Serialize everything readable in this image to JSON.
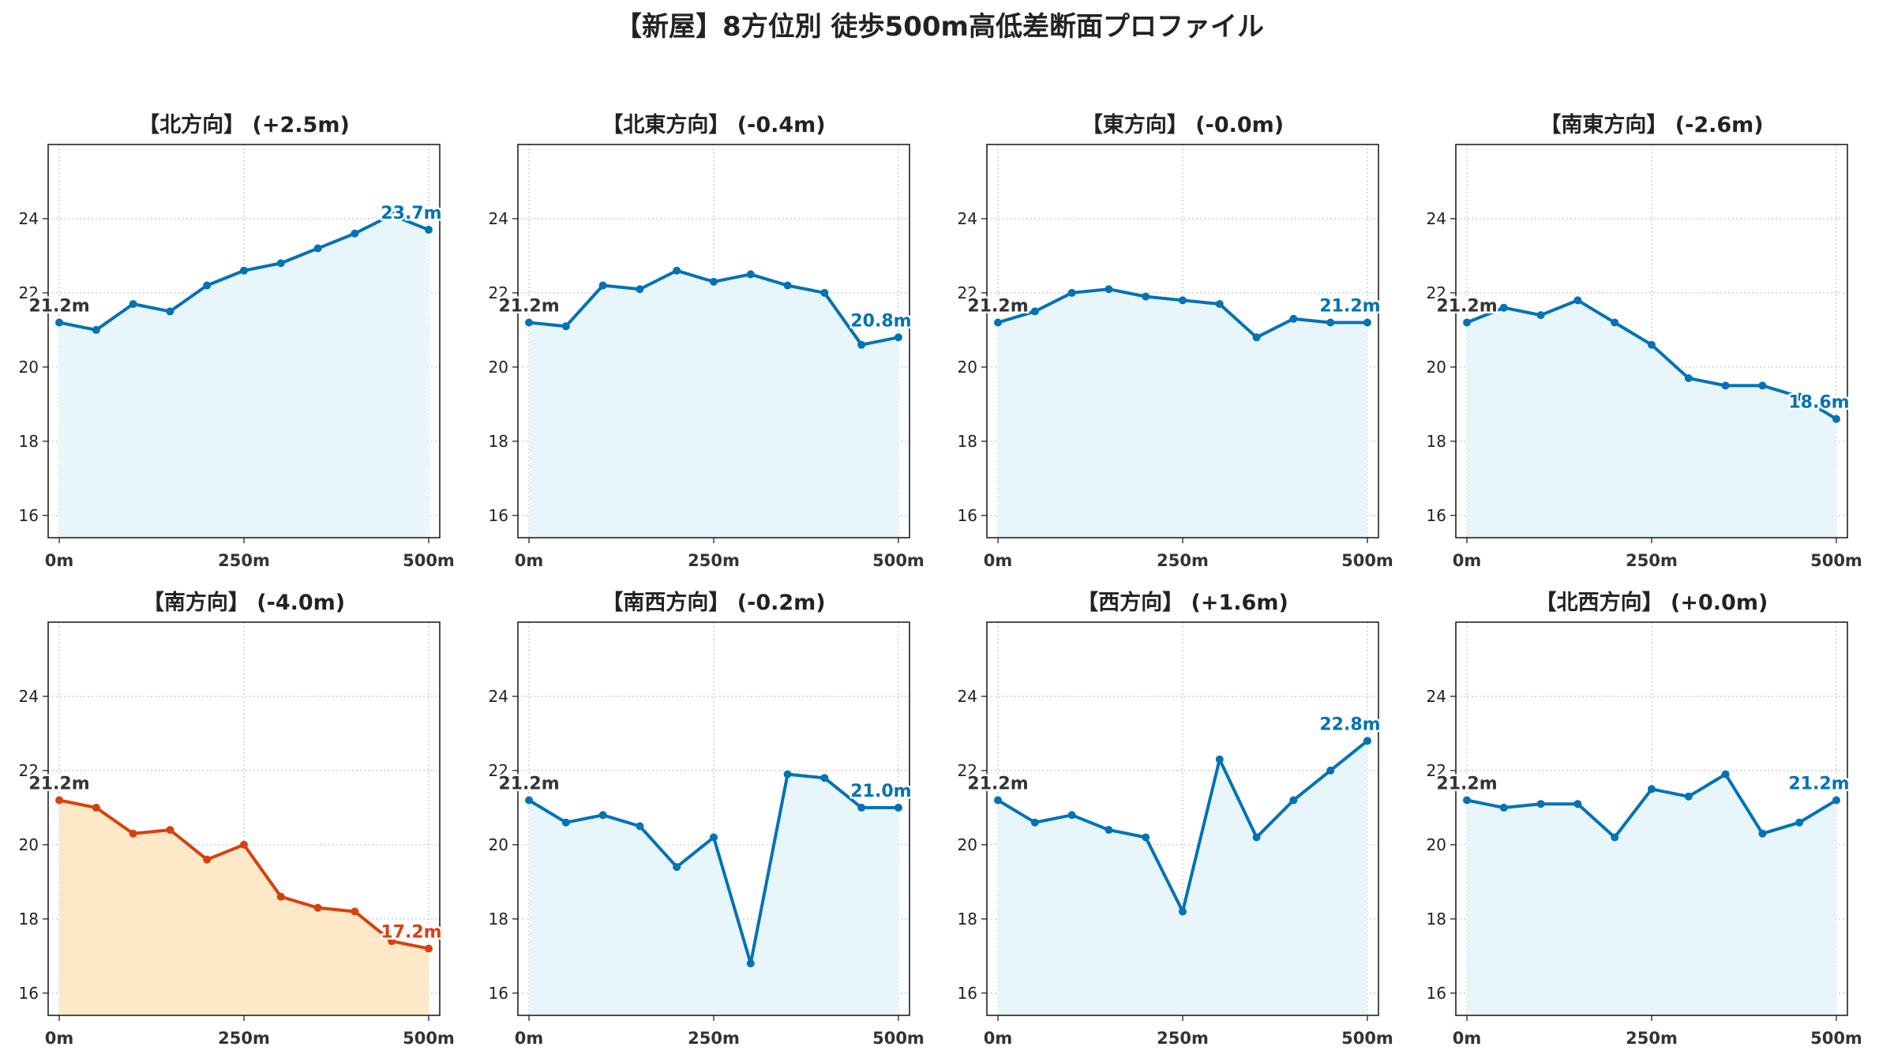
{
  "figure": {
    "title": "【新屋】8方位別 徒歩500m高低差断面プロファイル"
  },
  "colors": {
    "normal_line": "#0072b5",
    "normal_fill": "#e8f6fc",
    "highlight_line": "#d9400f",
    "highlight_fill": "#fde8c8",
    "start_label": "#333333",
    "grid": "#c8c8c8"
  },
  "chart_data": [
    {
      "type": "area",
      "title": "【北方向】 (+2.5m)",
      "xlabel": "",
      "ylabel": "",
      "x": [
        0,
        50,
        100,
        150,
        200,
        250,
        300,
        350,
        400,
        450,
        500
      ],
      "y": [
        21.2,
        21.0,
        21.7,
        21.5,
        22.2,
        22.6,
        22.8,
        23.2,
        23.6,
        24.1,
        23.7
      ],
      "xticks": [
        "0m",
        "250m",
        "500m"
      ],
      "yticks": [
        "16",
        "18",
        "20",
        "22",
        "24"
      ],
      "xlim": [
        -15,
        515
      ],
      "ylim": [
        15.4,
        26.0
      ],
      "start_label": "21.2m",
      "end_label": "23.7m",
      "highlight": false,
      "grid": true
    },
    {
      "type": "area",
      "title": "【北東方向】 (-0.4m)",
      "xlabel": "",
      "ylabel": "",
      "x": [
        0,
        50,
        100,
        150,
        200,
        250,
        300,
        350,
        400,
        450,
        500
      ],
      "y": [
        21.2,
        21.1,
        22.2,
        22.1,
        22.6,
        22.3,
        22.5,
        22.2,
        22.0,
        20.6,
        20.8
      ],
      "xticks": [
        "0m",
        "250m",
        "500m"
      ],
      "yticks": [
        "16",
        "18",
        "20",
        "22",
        "24"
      ],
      "xlim": [
        -15,
        515
      ],
      "ylim": [
        15.4,
        26.0
      ],
      "start_label": "21.2m",
      "end_label": "20.8m",
      "highlight": false,
      "grid": true
    },
    {
      "type": "area",
      "title": "【東方向】 (-0.0m)",
      "xlabel": "",
      "ylabel": "",
      "x": [
        0,
        50,
        100,
        150,
        200,
        250,
        300,
        350,
        400,
        450,
        500
      ],
      "y": [
        21.2,
        21.5,
        22.0,
        22.1,
        21.9,
        21.8,
        21.7,
        20.8,
        21.3,
        21.2,
        21.2
      ],
      "xticks": [
        "0m",
        "250m",
        "500m"
      ],
      "yticks": [
        "16",
        "18",
        "20",
        "22",
        "24"
      ],
      "xlim": [
        -15,
        515
      ],
      "ylim": [
        15.4,
        26.0
      ],
      "start_label": "21.2m",
      "end_label": "21.2m",
      "highlight": false,
      "grid": true
    },
    {
      "type": "area",
      "title": "【南東方向】 (-2.6m)",
      "xlabel": "",
      "ylabel": "",
      "x": [
        0,
        50,
        100,
        150,
        200,
        250,
        300,
        350,
        400,
        450,
        500
      ],
      "y": [
        21.2,
        21.6,
        21.4,
        21.8,
        21.2,
        20.6,
        19.7,
        19.5,
        19.5,
        19.2,
        18.6
      ],
      "xticks": [
        "0m",
        "250m",
        "500m"
      ],
      "yticks": [
        "16",
        "18",
        "20",
        "22",
        "24"
      ],
      "xlim": [
        -15,
        515
      ],
      "ylim": [
        15.4,
        26.0
      ],
      "start_label": "21.2m",
      "end_label": "18.6m",
      "highlight": false,
      "grid": true
    },
    {
      "type": "area",
      "title": "【南方向】 (-4.0m)",
      "xlabel": "",
      "ylabel": "",
      "x": [
        0,
        50,
        100,
        150,
        200,
        250,
        300,
        350,
        400,
        450,
        500
      ],
      "y": [
        21.2,
        21.0,
        20.3,
        20.4,
        19.6,
        20.0,
        18.6,
        18.3,
        18.2,
        17.4,
        17.2
      ],
      "xticks": [
        "0m",
        "250m",
        "500m"
      ],
      "yticks": [
        "16",
        "18",
        "20",
        "22",
        "24"
      ],
      "xlim": [
        -15,
        515
      ],
      "ylim": [
        15.4,
        26.0
      ],
      "start_label": "21.2m",
      "end_label": "17.2m",
      "highlight": true,
      "grid": true
    },
    {
      "type": "area",
      "title": "【南西方向】 (-0.2m)",
      "xlabel": "",
      "ylabel": "",
      "x": [
        0,
        50,
        100,
        150,
        200,
        250,
        300,
        350,
        400,
        450,
        500
      ],
      "y": [
        21.2,
        20.6,
        20.8,
        20.5,
        19.4,
        20.2,
        16.8,
        21.9,
        21.8,
        21.0,
        21.0
      ],
      "xticks": [
        "0m",
        "250m",
        "500m"
      ],
      "yticks": [
        "16",
        "18",
        "20",
        "22",
        "24"
      ],
      "xlim": [
        -15,
        515
      ],
      "ylim": [
        15.4,
        26.0
      ],
      "start_label": "21.2m",
      "end_label": "21.0m",
      "highlight": false,
      "grid": true
    },
    {
      "type": "area",
      "title": "【西方向】 (+1.6m)",
      "xlabel": "",
      "ylabel": "",
      "x": [
        0,
        50,
        100,
        150,
        200,
        250,
        300,
        350,
        400,
        450,
        500
      ],
      "y": [
        21.2,
        20.6,
        20.8,
        20.4,
        20.2,
        18.2,
        22.3,
        20.2,
        21.2,
        22.0,
        22.8
      ],
      "xticks": [
        "0m",
        "250m",
        "500m"
      ],
      "yticks": [
        "16",
        "18",
        "20",
        "22",
        "24"
      ],
      "xlim": [
        -15,
        515
      ],
      "ylim": [
        15.4,
        26.0
      ],
      "start_label": "21.2m",
      "end_label": "22.8m",
      "highlight": false,
      "grid": true
    },
    {
      "type": "area",
      "title": "【北西方向】 (+0.0m)",
      "xlabel": "",
      "ylabel": "",
      "x": [
        0,
        50,
        100,
        150,
        200,
        250,
        300,
        350,
        400,
        450,
        500
      ],
      "y": [
        21.2,
        21.0,
        21.1,
        21.1,
        20.2,
        21.5,
        21.3,
        21.9,
        20.3,
        20.6,
        21.2
      ],
      "xticks": [
        "0m",
        "250m",
        "500m"
      ],
      "yticks": [
        "16",
        "18",
        "20",
        "22",
        "24"
      ],
      "xlim": [
        -15,
        515
      ],
      "ylim": [
        15.4,
        26.0
      ],
      "start_label": "21.2m",
      "end_label": "21.2m",
      "highlight": false,
      "grid": true
    }
  ]
}
